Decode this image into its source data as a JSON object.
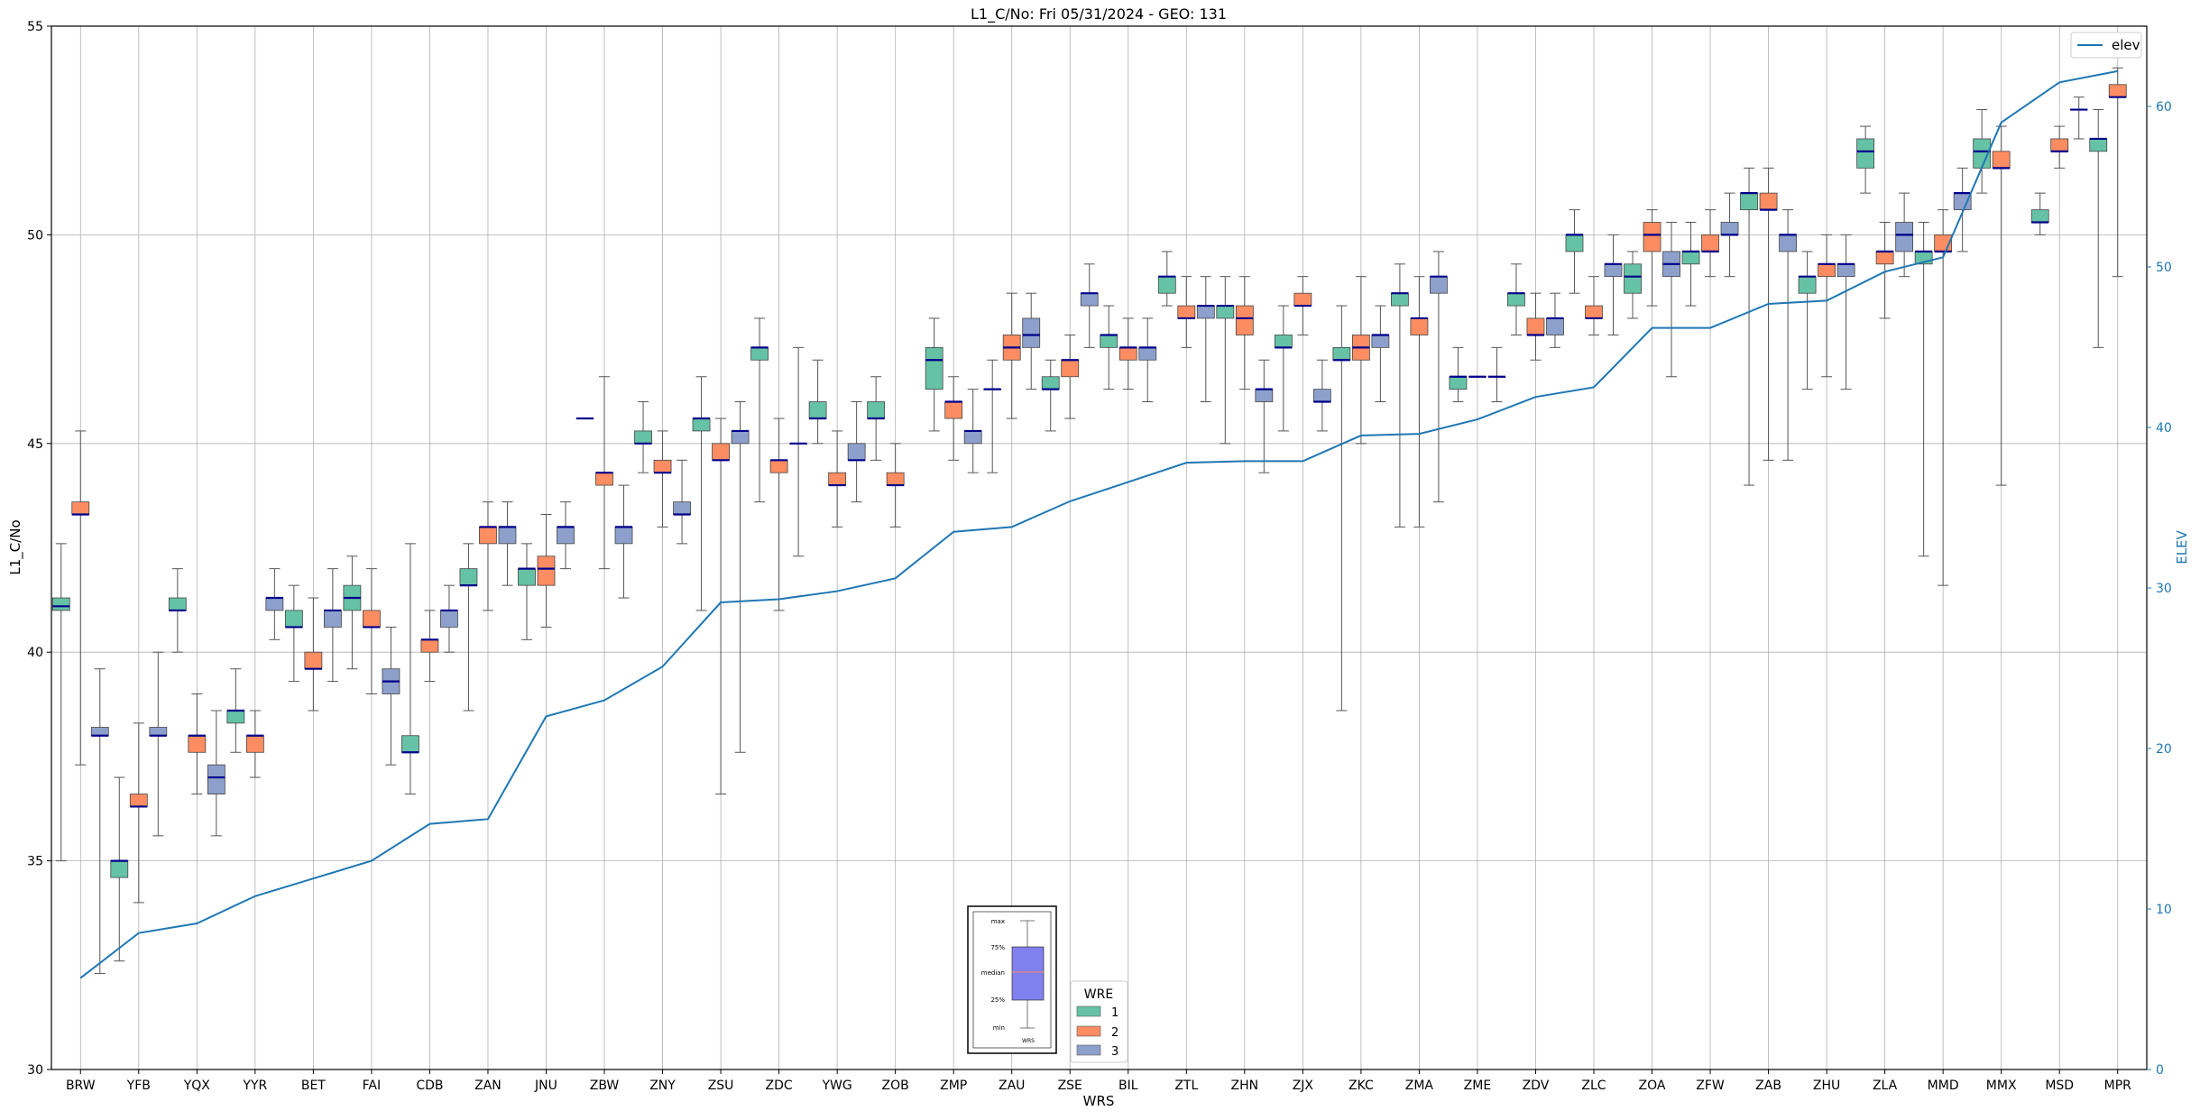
{
  "chart_data": {
    "type": "box",
    "title": "L1_C/No: Fri 05/31/2024 - GEO: 131",
    "xlabel": "WRS",
    "ylabel": "L1_C/No",
    "y2label": "ELEV",
    "ylim": [
      30,
      55
    ],
    "y2lim": [
      0,
      65
    ],
    "yticks": [
      30,
      35,
      40,
      45,
      50,
      55
    ],
    "y2ticks": [
      0,
      10,
      20,
      30,
      40,
      50,
      60
    ],
    "grid": true,
    "categories": [
      "BRW",
      "YFB",
      "YQX",
      "YYR",
      "BET",
      "FAI",
      "CDB",
      "ZAN",
      "JNU",
      "ZBW",
      "ZNY",
      "ZSU",
      "ZDC",
      "YWG",
      "ZOB",
      "ZMP",
      "ZAU",
      "ZSE",
      "BIL",
      "ZTL",
      "ZHN",
      "ZJX",
      "ZKC",
      "ZMA",
      "ZME",
      "ZDV",
      "ZLC",
      "ZOA",
      "ZFW",
      "ZAB",
      "ZHU",
      "ZLA",
      "MMD",
      "MMX",
      "MSD",
      "MPR"
    ],
    "wre_colors": {
      "1": "#66c2a5",
      "2": "#fc8d62",
      "3": "#8da0cb"
    },
    "elev_color": "#1f77b4",
    "median_color": "#00008b",
    "legend_wre": {
      "title": "WRE",
      "items": [
        "1",
        "2",
        "3"
      ],
      "position": "bottom-center"
    },
    "legend_elev": {
      "label": "elev",
      "position": "top-right"
    },
    "key_box": {
      "labels": [
        "max",
        "75%",
        "median",
        "25%",
        "min"
      ],
      "caption": "WRS"
    },
    "elev": [
      5.7,
      8.5,
      9.1,
      10.8,
      11.9,
      13.0,
      15.3,
      15.6,
      22.0,
      23.0,
      25.1,
      29.1,
      29.3,
      29.8,
      30.6,
      33.5,
      33.8,
      35.4,
      36.6,
      37.8,
      37.9,
      37.9,
      39.5,
      39.6,
      40.5,
      41.9,
      42.5,
      46.2,
      46.2,
      47.7,
      47.9,
      49.7,
      50.6,
      59.0,
      61.5,
      62.2
    ],
    "boxes": [
      {
        "station": "BRW",
        "wre": 1,
        "min": 35.0,
        "q1": 41.0,
        "median": 41.1,
        "q3": 41.3,
        "max": 42.6
      },
      {
        "station": "BRW",
        "wre": 2,
        "min": 37.3,
        "q1": 43.3,
        "median": 43.3,
        "q3": 43.6,
        "max": 45.3
      },
      {
        "station": "BRW",
        "wre": 3,
        "min": 32.3,
        "q1": 38.0,
        "median": 38.0,
        "q3": 38.2,
        "max": 39.6
      },
      {
        "station": "YFB",
        "wre": 1,
        "min": 32.6,
        "q1": 34.6,
        "median": 35.0,
        "q3": 35.0,
        "max": 37.0
      },
      {
        "station": "YFB",
        "wre": 2,
        "min": 34.0,
        "q1": 36.3,
        "median": 36.3,
        "q3": 36.6,
        "max": 38.3
      },
      {
        "station": "YFB",
        "wre": 3,
        "min": 35.6,
        "q1": 38.0,
        "median": 38.0,
        "q3": 38.2,
        "max": 40.0
      },
      {
        "station": "YQX",
        "wre": 1,
        "min": 40.0,
        "q1": 41.0,
        "median": 41.0,
        "q3": 41.3,
        "max": 42.0
      },
      {
        "station": "YQX",
        "wre": 2,
        "min": 36.6,
        "q1": 37.6,
        "median": 38.0,
        "q3": 38.0,
        "max": 39.0
      },
      {
        "station": "YQX",
        "wre": 3,
        "min": 35.6,
        "q1": 36.6,
        "median": 37.0,
        "q3": 37.3,
        "max": 38.6
      },
      {
        "station": "YYR",
        "wre": 1,
        "min": 37.6,
        "q1": 38.3,
        "median": 38.6,
        "q3": 38.6,
        "max": 39.6
      },
      {
        "station": "YYR",
        "wre": 2,
        "min": 37.0,
        "q1": 37.6,
        "median": 38.0,
        "q3": 38.0,
        "max": 38.6
      },
      {
        "station": "YYR",
        "wre": 3,
        "min": 40.3,
        "q1": 41.0,
        "median": 41.3,
        "q3": 41.3,
        "max": 42.0
      },
      {
        "station": "BET",
        "wre": 1,
        "min": 39.3,
        "q1": 40.6,
        "median": 40.6,
        "q3": 41.0,
        "max": 41.6
      },
      {
        "station": "BET",
        "wre": 2,
        "min": 38.6,
        "q1": 39.6,
        "median": 39.6,
        "q3": 40.0,
        "max": 41.3
      },
      {
        "station": "BET",
        "wre": 3,
        "min": 39.3,
        "q1": 40.6,
        "median": 41.0,
        "q3": 41.0,
        "max": 42.0
      },
      {
        "station": "FAI",
        "wre": 1,
        "min": 39.6,
        "q1": 41.0,
        "median": 41.3,
        "q3": 41.6,
        "max": 42.3
      },
      {
        "station": "FAI",
        "wre": 2,
        "min": 39.0,
        "q1": 40.6,
        "median": 40.6,
        "q3": 41.0,
        "max": 42.0
      },
      {
        "station": "FAI",
        "wre": 3,
        "min": 37.3,
        "q1": 39.0,
        "median": 39.3,
        "q3": 39.6,
        "max": 40.6
      },
      {
        "station": "CDB",
        "wre": 1,
        "min": 36.6,
        "q1": 37.6,
        "median": 37.6,
        "q3": 38.0,
        "max": 42.6
      },
      {
        "station": "CDB",
        "wre": 2,
        "min": 39.3,
        "q1": 40.0,
        "median": 40.3,
        "q3": 40.3,
        "max": 41.0
      },
      {
        "station": "CDB",
        "wre": 3,
        "min": 40.0,
        "q1": 40.6,
        "median": 41.0,
        "q3": 41.0,
        "max": 41.6
      },
      {
        "station": "ZAN",
        "wre": 1,
        "min": 38.6,
        "q1": 41.6,
        "median": 41.6,
        "q3": 42.0,
        "max": 42.6
      },
      {
        "station": "ZAN",
        "wre": 2,
        "min": 41.0,
        "q1": 42.6,
        "median": 43.0,
        "q3": 43.0,
        "max": 43.6
      },
      {
        "station": "ZAN",
        "wre": 3,
        "min": 41.6,
        "q1": 42.6,
        "median": 43.0,
        "q3": 43.0,
        "max": 43.6
      },
      {
        "station": "JNU",
        "wre": 1,
        "min": 40.3,
        "q1": 41.6,
        "median": 42.0,
        "q3": 42.0,
        "max": 42.6
      },
      {
        "station": "JNU",
        "wre": 2,
        "min": 40.6,
        "q1": 41.6,
        "median": 42.0,
        "q3": 42.3,
        "max": 43.3
      },
      {
        "station": "JNU",
        "wre": 3,
        "min": 42.0,
        "q1": 42.6,
        "median": 43.0,
        "q3": 43.0,
        "max": 43.6
      },
      {
        "station": "ZBW",
        "wre": 1,
        "min": 45.6,
        "q1": 45.6,
        "median": 45.6,
        "q3": 45.6,
        "max": 45.6
      },
      {
        "station": "ZBW",
        "wre": 2,
        "min": 42.0,
        "q1": 44.0,
        "median": 44.3,
        "q3": 44.3,
        "max": 46.6
      },
      {
        "station": "ZBW",
        "wre": 3,
        "min": 41.3,
        "q1": 42.6,
        "median": 43.0,
        "q3": 43.0,
        "max": 44.0
      },
      {
        "station": "ZNY",
        "wre": 1,
        "min": 44.3,
        "q1": 45.0,
        "median": 45.0,
        "q3": 45.3,
        "max": 46.0
      },
      {
        "station": "ZNY",
        "wre": 2,
        "min": 43.0,
        "q1": 44.3,
        "median": 44.3,
        "q3": 44.6,
        "max": 45.3
      },
      {
        "station": "ZNY",
        "wre": 3,
        "min": 42.6,
        "q1": 43.3,
        "median": 43.3,
        "q3": 43.6,
        "max": 44.6
      },
      {
        "station": "ZSU",
        "wre": 1,
        "min": 41.0,
        "q1": 45.3,
        "median": 45.6,
        "q3": 45.6,
        "max": 46.6
      },
      {
        "station": "ZSU",
        "wre": 2,
        "min": 36.6,
        "q1": 44.6,
        "median": 44.6,
        "q3": 45.0,
        "max": 45.6
      },
      {
        "station": "ZSU",
        "wre": 3,
        "min": 37.6,
        "q1": 45.0,
        "median": 45.3,
        "q3": 45.3,
        "max": 46.0
      },
      {
        "station": "ZDC",
        "wre": 1,
        "min": 43.6,
        "q1": 47.0,
        "median": 47.3,
        "q3": 47.3,
        "max": 48.0
      },
      {
        "station": "ZDC",
        "wre": 2,
        "min": 41.0,
        "q1": 44.3,
        "median": 44.6,
        "q3": 44.6,
        "max": 45.6
      },
      {
        "station": "ZDC",
        "wre": 3,
        "min": 42.3,
        "q1": 45.0,
        "median": 45.0,
        "q3": 45.0,
        "max": 47.3
      },
      {
        "station": "YWG",
        "wre": 1,
        "min": 45.0,
        "q1": 45.6,
        "median": 45.6,
        "q3": 46.0,
        "max": 47.0
      },
      {
        "station": "YWG",
        "wre": 2,
        "min": 43.0,
        "q1": 44.0,
        "median": 44.0,
        "q3": 44.3,
        "max": 45.3
      },
      {
        "station": "YWG",
        "wre": 3,
        "min": 43.6,
        "q1": 44.6,
        "median": 44.6,
        "q3": 45.0,
        "max": 46.0
      },
      {
        "station": "ZOB",
        "wre": 1,
        "min": 44.6,
        "q1": 45.6,
        "median": 45.6,
        "q3": 46.0,
        "max": 46.6
      },
      {
        "station": "ZOB",
        "wre": 2,
        "min": 43.0,
        "q1": 44.0,
        "median": 44.0,
        "q3": 44.3,
        "max": 45.0
      },
      {
        "station": "ZMP",
        "wre": 1,
        "min": 45.3,
        "q1": 46.3,
        "median": 47.0,
        "q3": 47.3,
        "max": 48.0
      },
      {
        "station": "ZMP",
        "wre": 2,
        "min": 44.6,
        "q1": 45.6,
        "median": 46.0,
        "q3": 46.0,
        "max": 46.6
      },
      {
        "station": "ZMP",
        "wre": 3,
        "min": 44.3,
        "q1": 45.0,
        "median": 45.3,
        "q3": 45.3,
        "max": 46.3
      },
      {
        "station": "ZAU",
        "wre": 1,
        "min": 44.3,
        "q1": 46.3,
        "median": 46.3,
        "q3": 46.3,
        "max": 47.0
      },
      {
        "station": "ZAU",
        "wre": 2,
        "min": 45.6,
        "q1": 47.0,
        "median": 47.3,
        "q3": 47.6,
        "max": 48.6
      },
      {
        "station": "ZAU",
        "wre": 3,
        "min": 46.3,
        "q1": 47.3,
        "median": 47.6,
        "q3": 48.0,
        "max": 48.6
      },
      {
        "station": "ZSE",
        "wre": 1,
        "min": 45.3,
        "q1": 46.3,
        "median": 46.3,
        "q3": 46.6,
        "max": 47.0
      },
      {
        "station": "ZSE",
        "wre": 2,
        "min": 45.6,
        "q1": 46.6,
        "median": 47.0,
        "q3": 47.0,
        "max": 47.6
      },
      {
        "station": "ZSE",
        "wre": 3,
        "min": 47.3,
        "q1": 48.3,
        "median": 48.6,
        "q3": 48.6,
        "max": 49.3
      },
      {
        "station": "BIL",
        "wre": 1,
        "min": 46.3,
        "q1": 47.3,
        "median": 47.6,
        "q3": 47.6,
        "max": 48.3
      },
      {
        "station": "BIL",
        "wre": 2,
        "min": 46.3,
        "q1": 47.0,
        "median": 47.3,
        "q3": 47.3,
        "max": 48.0
      },
      {
        "station": "BIL",
        "wre": 3,
        "min": 46.0,
        "q1": 47.0,
        "median": 47.3,
        "q3": 47.3,
        "max": 48.0
      },
      {
        "station": "ZTL",
        "wre": 1,
        "min": 48.3,
        "q1": 48.6,
        "median": 49.0,
        "q3": 49.0,
        "max": 49.6
      },
      {
        "station": "ZTL",
        "wre": 2,
        "min": 47.3,
        "q1": 48.0,
        "median": 48.0,
        "q3": 48.3,
        "max": 49.0
      },
      {
        "station": "ZTL",
        "wre": 3,
        "min": 46.0,
        "q1": 48.0,
        "median": 48.3,
        "q3": 48.3,
        "max": 49.0
      },
      {
        "station": "ZHN",
        "wre": 1,
        "min": 45.0,
        "q1": 48.0,
        "median": 48.3,
        "q3": 48.3,
        "max": 49.0
      },
      {
        "station": "ZHN",
        "wre": 2,
        "min": 46.3,
        "q1": 47.6,
        "median": 48.0,
        "q3": 48.3,
        "max": 49.0
      },
      {
        "station": "ZHN",
        "wre": 3,
        "min": 44.3,
        "q1": 46.0,
        "median": 46.3,
        "q3": 46.3,
        "max": 47.0
      },
      {
        "station": "ZJX",
        "wre": 1,
        "min": 45.3,
        "q1": 47.3,
        "median": 47.3,
        "q3": 47.6,
        "max": 48.3
      },
      {
        "station": "ZJX",
        "wre": 2,
        "min": 47.6,
        "q1": 48.3,
        "median": 48.3,
        "q3": 48.6,
        "max": 49.0
      },
      {
        "station": "ZJX",
        "wre": 3,
        "min": 45.3,
        "q1": 46.0,
        "median": 46.0,
        "q3": 46.3,
        "max": 47.0
      },
      {
        "station": "ZKC",
        "wre": 1,
        "min": 38.6,
        "q1": 47.0,
        "median": 47.0,
        "q3": 47.3,
        "max": 48.3
      },
      {
        "station": "ZKC",
        "wre": 2,
        "min": 45.0,
        "q1": 47.0,
        "median": 47.3,
        "q3": 47.6,
        "max": 49.0
      },
      {
        "station": "ZKC",
        "wre": 3,
        "min": 46.0,
        "q1": 47.3,
        "median": 47.6,
        "q3": 47.6,
        "max": 48.3
      },
      {
        "station": "ZMA",
        "wre": 1,
        "min": 43.0,
        "q1": 48.3,
        "median": 48.6,
        "q3": 48.6,
        "max": 49.3
      },
      {
        "station": "ZMA",
        "wre": 2,
        "min": 43.0,
        "q1": 47.6,
        "median": 48.0,
        "q3": 48.0,
        "max": 49.0
      },
      {
        "station": "ZMA",
        "wre": 3,
        "min": 43.6,
        "q1": 48.6,
        "median": 49.0,
        "q3": 49.0,
        "max": 49.6
      },
      {
        "station": "ZME",
        "wre": 1,
        "min": 46.0,
        "q1": 46.3,
        "median": 46.6,
        "q3": 46.6,
        "max": 47.3
      },
      {
        "station": "ZME",
        "wre": 2,
        "min": 46.6,
        "q1": 46.6,
        "median": 46.6,
        "q3": 46.6,
        "max": 46.6
      },
      {
        "station": "ZME",
        "wre": 3,
        "min": 46.0,
        "q1": 46.6,
        "median": 46.6,
        "q3": 46.6,
        "max": 47.3
      },
      {
        "station": "ZDV",
        "wre": 1,
        "min": 47.6,
        "q1": 48.3,
        "median": 48.6,
        "q3": 48.6,
        "max": 49.3
      },
      {
        "station": "ZDV",
        "wre": 2,
        "min": 47.0,
        "q1": 47.6,
        "median": 47.6,
        "q3": 48.0,
        "max": 48.6
      },
      {
        "station": "ZDV",
        "wre": 3,
        "min": 47.3,
        "q1": 47.6,
        "median": 48.0,
        "q3": 48.0,
        "max": 48.6
      },
      {
        "station": "ZLC",
        "wre": 1,
        "min": 48.6,
        "q1": 49.6,
        "median": 50.0,
        "q3": 50.0,
        "max": 50.6
      },
      {
        "station": "ZLC",
        "wre": 2,
        "min": 47.6,
        "q1": 48.0,
        "median": 48.0,
        "q3": 48.3,
        "max": 49.0
      },
      {
        "station": "ZLC",
        "wre": 3,
        "min": 47.6,
        "q1": 49.0,
        "median": 49.3,
        "q3": 49.3,
        "max": 50.0
      },
      {
        "station": "ZOA",
        "wre": 1,
        "min": 48.0,
        "q1": 48.6,
        "median": 49.0,
        "q3": 49.3,
        "max": 49.6
      },
      {
        "station": "ZOA",
        "wre": 2,
        "min": 48.3,
        "q1": 49.6,
        "median": 50.0,
        "q3": 50.3,
        "max": 50.6
      },
      {
        "station": "ZOA",
        "wre": 3,
        "min": 46.6,
        "q1": 49.0,
        "median": 49.3,
        "q3": 49.6,
        "max": 50.3
      },
      {
        "station": "ZFW",
        "wre": 1,
        "min": 48.3,
        "q1": 49.3,
        "median": 49.6,
        "q3": 49.6,
        "max": 50.3
      },
      {
        "station": "ZFW",
        "wre": 2,
        "min": 49.0,
        "q1": 49.6,
        "median": 49.6,
        "q3": 50.0,
        "max": 50.6
      },
      {
        "station": "ZFW",
        "wre": 3,
        "min": 49.0,
        "q1": 50.0,
        "median": 50.0,
        "q3": 50.3,
        "max": 51.0
      },
      {
        "station": "ZAB",
        "wre": 1,
        "min": 44.0,
        "q1": 50.6,
        "median": 51.0,
        "q3": 51.0,
        "max": 51.6
      },
      {
        "station": "ZAB",
        "wre": 2,
        "min": 44.6,
        "q1": 50.6,
        "median": 50.6,
        "q3": 51.0,
        "max": 51.6
      },
      {
        "station": "ZAB",
        "wre": 3,
        "min": 44.6,
        "q1": 49.6,
        "median": 50.0,
        "q3": 50.0,
        "max": 50.6
      },
      {
        "station": "ZHU",
        "wre": 1,
        "min": 46.3,
        "q1": 48.6,
        "median": 49.0,
        "q3": 49.0,
        "max": 49.6
      },
      {
        "station": "ZHU",
        "wre": 2,
        "min": 46.6,
        "q1": 49.0,
        "median": 49.3,
        "q3": 49.3,
        "max": 50.0
      },
      {
        "station": "ZHU",
        "wre": 3,
        "min": 46.3,
        "q1": 49.0,
        "median": 49.3,
        "q3": 49.3,
        "max": 50.0
      },
      {
        "station": "ZLA",
        "wre": 1,
        "min": 51.0,
        "q1": 51.6,
        "median": 52.0,
        "q3": 52.3,
        "max": 52.6
      },
      {
        "station": "ZLA",
        "wre": 2,
        "min": 48.0,
        "q1": 49.3,
        "median": 49.6,
        "q3": 49.6,
        "max": 50.3
      },
      {
        "station": "ZLA",
        "wre": 3,
        "min": 49.0,
        "q1": 49.6,
        "median": 50.0,
        "q3": 50.3,
        "max": 51.0
      },
      {
        "station": "MMD",
        "wre": 1,
        "min": 42.3,
        "q1": 49.3,
        "median": 49.6,
        "q3": 49.6,
        "max": 50.3
      },
      {
        "station": "MMD",
        "wre": 2,
        "min": 41.6,
        "q1": 49.6,
        "median": 49.6,
        "q3": 50.0,
        "max": 50.6
      },
      {
        "station": "MMD",
        "wre": 3,
        "min": 49.6,
        "q1": 50.6,
        "median": 51.0,
        "q3": 51.0,
        "max": 51.6
      },
      {
        "station": "MMX",
        "wre": 1,
        "min": 51.0,
        "q1": 51.6,
        "median": 52.0,
        "q3": 52.3,
        "max": 53.0
      },
      {
        "station": "MMX",
        "wre": 2,
        "min": 44.0,
        "q1": 51.6,
        "median": 51.6,
        "q3": 52.0,
        "max": 52.6
      },
      {
        "station": "MSD",
        "wre": 1,
        "min": 50.0,
        "q1": 50.3,
        "median": 50.3,
        "q3": 50.6,
        "max": 51.0
      },
      {
        "station": "MSD",
        "wre": 2,
        "min": 51.6,
        "q1": 52.0,
        "median": 52.0,
        "q3": 52.3,
        "max": 52.6
      },
      {
        "station": "MSD",
        "wre": 3,
        "min": 52.3,
        "q1": 53.0,
        "median": 53.0,
        "q3": 53.0,
        "max": 53.3
      },
      {
        "station": "MPR",
        "wre": 1,
        "min": 47.3,
        "q1": 52.0,
        "median": 52.3,
        "q3": 52.3,
        "max": 53.0
      },
      {
        "station": "MPR",
        "wre": 2,
        "min": 49.0,
        "q1": 53.3,
        "median": 53.3,
        "q3": 53.6,
        "max": 54.0
      }
    ]
  }
}
